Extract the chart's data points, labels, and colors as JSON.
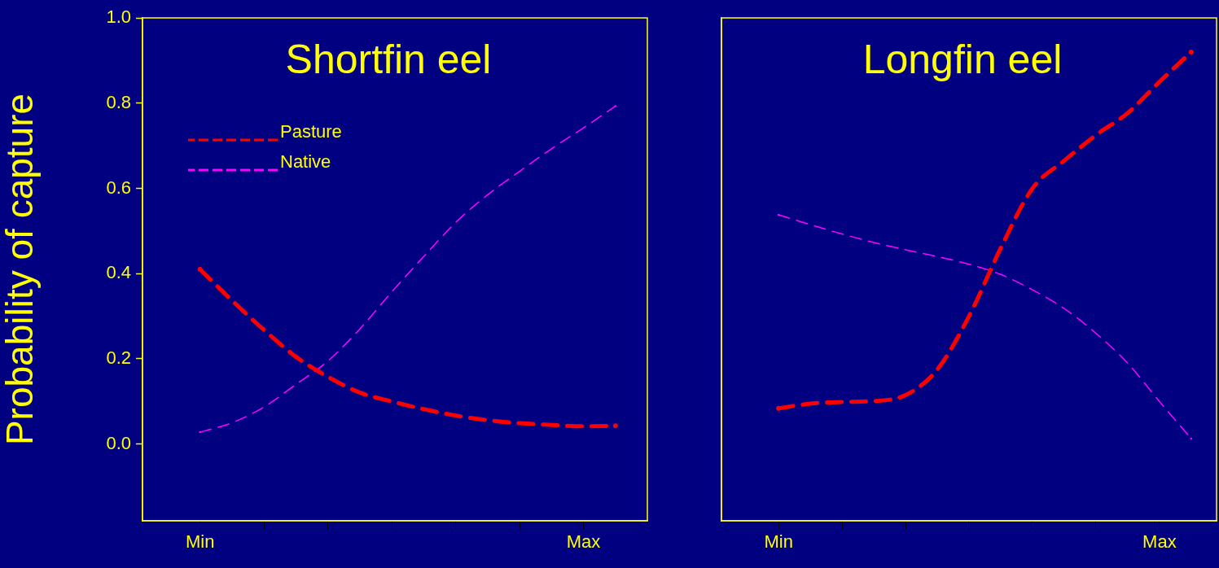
{
  "chart_data": [
    {
      "type": "line",
      "title": "Shortfin eel",
      "ylabel": "Probability of capture",
      "legend": "top left",
      "line_style": "dashed",
      "marker": "none",
      "grid": false,
      "categories": [
        "Min",
        null,
        null,
        null,
        null,
        null,
        null,
        null,
        null,
        null,
        null,
        null,
        "Max",
        null,
        null
      ],
      "ylim": [
        -0.18,
        1.0
      ],
      "yticks": [
        {
          "value": 0,
          "label": "0.0"
        },
        {
          "value": 0.2,
          "label": "0.2"
        },
        {
          "value": 0.4,
          "label": "0.4"
        },
        {
          "value": 0.6,
          "label": "0.6"
        },
        {
          "value": 0.8,
          "label": "0.8"
        },
        {
          "value": 1,
          "label": "1.0"
        }
      ],
      "series": [
        {
          "name": "Pasture",
          "color": "#ff0000",
          "values": [
            0.41,
            0.337,
            0.268,
            0.205,
            0.158,
            0.121,
            0.1,
            0.082,
            0.067,
            0.056,
            0.049,
            0.045,
            0.042,
            0.043,
            null
          ]
        },
        {
          "name": "Native",
          "color": "#ff00ff",
          "values": [
            0.028,
            0.05,
            0.087,
            0.14,
            0.195,
            0.27,
            0.357,
            0.44,
            0.52,
            0.585,
            0.64,
            0.693,
            0.742,
            0.793,
            null
          ]
        }
      ]
    },
    {
      "type": "line",
      "title": "Longfin eel",
      "line_style": "dashed",
      "marker": "none",
      "grid": false,
      "tick_labels": "x",
      "categories": [
        "Min",
        null,
        null,
        null,
        null,
        null,
        null,
        null,
        null,
        null,
        null,
        null,
        "Max",
        null
      ],
      "ylim": [
        -0.18,
        1.0
      ],
      "series": [
        {
          "color": "#ff0000",
          "values": [
            0.084,
            0.095,
            0.099,
            0.101,
            0.115,
            0.175,
            0.3,
            0.46,
            0.6,
            0.665,
            0.725,
            0.777,
            0.85,
            0.92
          ]
        },
        {
          "color": "#ff00ff",
          "values": [
            0.538,
            0.515,
            0.493,
            0.473,
            0.456,
            0.44,
            0.422,
            0.398,
            0.362,
            0.318,
            0.26,
            0.19,
            0.1,
            0.013
          ]
        }
      ]
    }
  ]
}
